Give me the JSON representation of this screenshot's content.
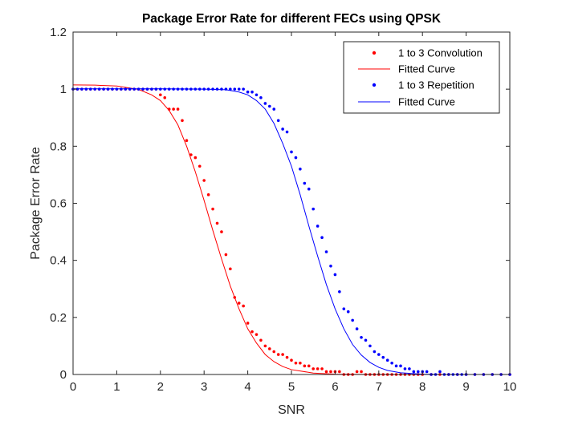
{
  "chart_data": {
    "type": "scatter",
    "title": "Package Error Rate for different FECs using QPSK",
    "xlabel": "SNR",
    "ylabel": "Package Error Rate",
    "xlim": [
      0,
      10
    ],
    "ylim": [
      0,
      1.2
    ],
    "xticks": [
      0,
      1,
      2,
      3,
      4,
      5,
      6,
      7,
      8,
      9,
      10
    ],
    "yticks": [
      0,
      0.2,
      0.4,
      0.6,
      0.8,
      1,
      1.2
    ],
    "xtick_labels": [
      "0",
      "1",
      "2",
      "3",
      "4",
      "5",
      "6",
      "7",
      "8",
      "9",
      "10"
    ],
    "ytick_labels": [
      "0",
      "0.2",
      "0.4",
      "0.6",
      "0.8",
      "1",
      "1.2"
    ],
    "grid": false,
    "legend_position": "top-right",
    "series": [
      {
        "name": "1 to 3 Convolution",
        "kind": "points",
        "color": "#ff0000",
        "points": [
          [
            0.0,
            1.0
          ],
          [
            0.1,
            1.0
          ],
          [
            0.2,
            1.0
          ],
          [
            0.3,
            1.0
          ],
          [
            0.4,
            1.0
          ],
          [
            0.5,
            1.0
          ],
          [
            0.6,
            1.0
          ],
          [
            0.7,
            1.0
          ],
          [
            0.8,
            1.0
          ],
          [
            0.9,
            1.0
          ],
          [
            1.0,
            1.0
          ],
          [
            1.1,
            1.0
          ],
          [
            1.2,
            1.0
          ],
          [
            1.3,
            1.0
          ],
          [
            1.4,
            1.0
          ],
          [
            1.5,
            1.0
          ],
          [
            1.6,
            1.0
          ],
          [
            1.7,
            1.0
          ],
          [
            1.8,
            1.0
          ],
          [
            1.9,
            1.0
          ],
          [
            2.0,
            0.98
          ],
          [
            2.1,
            0.97
          ],
          [
            2.2,
            0.93
          ],
          [
            2.3,
            0.93
          ],
          [
            2.4,
            0.93
          ],
          [
            2.5,
            0.89
          ],
          [
            2.6,
            0.82
          ],
          [
            2.7,
            0.77
          ],
          [
            2.8,
            0.76
          ],
          [
            2.9,
            0.73
          ],
          [
            3.0,
            0.68
          ],
          [
            3.1,
            0.63
          ],
          [
            3.2,
            0.58
          ],
          [
            3.3,
            0.53
          ],
          [
            3.4,
            0.5
          ],
          [
            3.5,
            0.42
          ],
          [
            3.6,
            0.37
          ],
          [
            3.7,
            0.27
          ],
          [
            3.8,
            0.25
          ],
          [
            3.9,
            0.24
          ],
          [
            4.0,
            0.18
          ],
          [
            4.1,
            0.15
          ],
          [
            4.2,
            0.14
          ],
          [
            4.3,
            0.12
          ],
          [
            4.4,
            0.1
          ],
          [
            4.5,
            0.09
          ],
          [
            4.6,
            0.08
          ],
          [
            4.7,
            0.07
          ],
          [
            4.8,
            0.07
          ],
          [
            4.9,
            0.06
          ],
          [
            5.0,
            0.05
          ],
          [
            5.1,
            0.04
          ],
          [
            5.2,
            0.04
          ],
          [
            5.3,
            0.03
          ],
          [
            5.4,
            0.03
          ],
          [
            5.5,
            0.02
          ],
          [
            5.6,
            0.02
          ],
          [
            5.7,
            0.02
          ],
          [
            5.8,
            0.01
          ],
          [
            5.9,
            0.01
          ],
          [
            6.0,
            0.01
          ],
          [
            6.1,
            0.01
          ],
          [
            6.2,
            0.0
          ],
          [
            6.3,
            0.0
          ],
          [
            6.4,
            0.0
          ],
          [
            6.5,
            0.01
          ],
          [
            6.6,
            0.01
          ],
          [
            6.7,
            0.0
          ],
          [
            6.8,
            0.0
          ],
          [
            6.9,
            0.0
          ],
          [
            7.0,
            0.0
          ],
          [
            7.1,
            0.0
          ],
          [
            7.2,
            0.0
          ],
          [
            7.3,
            0.0
          ],
          [
            7.4,
            0.0
          ],
          [
            7.5,
            0.0
          ],
          [
            7.6,
            0.0
          ],
          [
            7.7,
            0.0
          ],
          [
            7.8,
            0.0
          ],
          [
            7.9,
            0.0
          ],
          [
            8.0,
            0.0
          ],
          [
            8.2,
            0.0
          ],
          [
            8.4,
            0.0
          ],
          [
            8.6,
            0.0
          ],
          [
            8.8,
            0.0
          ],
          [
            9.0,
            0.0
          ],
          [
            9.2,
            0.0
          ],
          [
            9.4,
            0.0
          ],
          [
            9.6,
            0.0
          ],
          [
            9.8,
            0.0
          ],
          [
            10.0,
            0.0
          ]
        ]
      },
      {
        "name": "Fitted Curve",
        "kind": "line",
        "color": "#ff0000",
        "points": [
          [
            0.0,
            1.015
          ],
          [
            0.5,
            1.014
          ],
          [
            1.0,
            1.011
          ],
          [
            1.5,
            0.999
          ],
          [
            1.8,
            0.98
          ],
          [
            2.0,
            0.96
          ],
          [
            2.2,
            0.925
          ],
          [
            2.4,
            0.875
          ],
          [
            2.6,
            0.8
          ],
          [
            2.8,
            0.71
          ],
          [
            3.0,
            0.61
          ],
          [
            3.2,
            0.505
          ],
          [
            3.4,
            0.405
          ],
          [
            3.6,
            0.31
          ],
          [
            3.8,
            0.23
          ],
          [
            4.0,
            0.16
          ],
          [
            4.2,
            0.11
          ],
          [
            4.4,
            0.07
          ],
          [
            4.6,
            0.045
          ],
          [
            4.8,
            0.028
          ],
          [
            5.0,
            0.017
          ],
          [
            5.5,
            0.005
          ],
          [
            6.0,
            0.001
          ],
          [
            7.0,
            0.0
          ],
          [
            8.0,
            0.0
          ],
          [
            9.0,
            0.0
          ],
          [
            10.0,
            0.0
          ]
        ]
      },
      {
        "name": "1 to 3 Repetition",
        "kind": "points",
        "color": "#0000ff",
        "points": [
          [
            0.0,
            1.0
          ],
          [
            0.1,
            1.0
          ],
          [
            0.2,
            1.0
          ],
          [
            0.3,
            1.0
          ],
          [
            0.4,
            1.0
          ],
          [
            0.5,
            1.0
          ],
          [
            0.6,
            1.0
          ],
          [
            0.7,
            1.0
          ],
          [
            0.8,
            1.0
          ],
          [
            0.9,
            1.0
          ],
          [
            1.0,
            1.0
          ],
          [
            1.1,
            1.0
          ],
          [
            1.2,
            1.0
          ],
          [
            1.3,
            1.0
          ],
          [
            1.4,
            1.0
          ],
          [
            1.5,
            1.0
          ],
          [
            1.6,
            1.0
          ],
          [
            1.7,
            1.0
          ],
          [
            1.8,
            1.0
          ],
          [
            1.9,
            1.0
          ],
          [
            2.0,
            1.0
          ],
          [
            2.1,
            1.0
          ],
          [
            2.2,
            1.0
          ],
          [
            2.3,
            1.0
          ],
          [
            2.4,
            1.0
          ],
          [
            2.5,
            1.0
          ],
          [
            2.6,
            1.0
          ],
          [
            2.7,
            1.0
          ],
          [
            2.8,
            1.0
          ],
          [
            2.9,
            1.0
          ],
          [
            3.0,
            1.0
          ],
          [
            3.1,
            1.0
          ],
          [
            3.2,
            1.0
          ],
          [
            3.3,
            1.0
          ],
          [
            3.4,
            1.0
          ],
          [
            3.5,
            1.0
          ],
          [
            3.6,
            1.0
          ],
          [
            3.7,
            1.0
          ],
          [
            3.8,
            1.0
          ],
          [
            3.9,
            1.0
          ],
          [
            4.0,
            0.99
          ],
          [
            4.1,
            0.99
          ],
          [
            4.2,
            0.98
          ],
          [
            4.3,
            0.97
          ],
          [
            4.4,
            0.95
          ],
          [
            4.5,
            0.94
          ],
          [
            4.6,
            0.93
          ],
          [
            4.7,
            0.89
          ],
          [
            4.8,
            0.86
          ],
          [
            4.9,
            0.85
          ],
          [
            5.0,
            0.78
          ],
          [
            5.1,
            0.76
          ],
          [
            5.2,
            0.72
          ],
          [
            5.3,
            0.67
          ],
          [
            5.4,
            0.65
          ],
          [
            5.5,
            0.58
          ],
          [
            5.6,
            0.52
          ],
          [
            5.7,
            0.48
          ],
          [
            5.8,
            0.43
          ],
          [
            5.9,
            0.38
          ],
          [
            6.0,
            0.35
          ],
          [
            6.1,
            0.29
          ],
          [
            6.2,
            0.23
          ],
          [
            6.3,
            0.22
          ],
          [
            6.4,
            0.19
          ],
          [
            6.5,
            0.16
          ],
          [
            6.6,
            0.13
          ],
          [
            6.7,
            0.12
          ],
          [
            6.8,
            0.1
          ],
          [
            6.9,
            0.08
          ],
          [
            7.0,
            0.07
          ],
          [
            7.1,
            0.06
          ],
          [
            7.2,
            0.05
          ],
          [
            7.3,
            0.04
          ],
          [
            7.4,
            0.03
          ],
          [
            7.5,
            0.03
          ],
          [
            7.6,
            0.02
          ],
          [
            7.7,
            0.02
          ],
          [
            7.8,
            0.01
          ],
          [
            7.9,
            0.01
          ],
          [
            8.0,
            0.01
          ],
          [
            8.1,
            0.01
          ],
          [
            8.2,
            0.0
          ],
          [
            8.3,
            0.0
          ],
          [
            8.4,
            0.01
          ],
          [
            8.5,
            0.0
          ],
          [
            8.6,
            0.0
          ],
          [
            8.7,
            0.0
          ],
          [
            8.8,
            0.0
          ],
          [
            8.9,
            0.0
          ],
          [
            9.0,
            0.0
          ],
          [
            9.2,
            0.0
          ],
          [
            9.4,
            0.0
          ],
          [
            9.6,
            0.0
          ],
          [
            9.8,
            0.0
          ],
          [
            10.0,
            0.0
          ]
        ]
      },
      {
        "name": "Fitted Curve",
        "kind": "line",
        "color": "#0000ff",
        "points": [
          [
            0.0,
            1.001
          ],
          [
            1.0,
            1.001
          ],
          [
            2.0,
            1.001
          ],
          [
            3.0,
            1.0
          ],
          [
            3.5,
            0.998
          ],
          [
            3.8,
            0.99
          ],
          [
            4.0,
            0.98
          ],
          [
            4.2,
            0.96
          ],
          [
            4.4,
            0.93
          ],
          [
            4.6,
            0.88
          ],
          [
            4.8,
            0.81
          ],
          [
            5.0,
            0.73
          ],
          [
            5.2,
            0.63
          ],
          [
            5.4,
            0.52
          ],
          [
            5.6,
            0.415
          ],
          [
            5.8,
            0.315
          ],
          [
            6.0,
            0.23
          ],
          [
            6.2,
            0.16
          ],
          [
            6.4,
            0.105
          ],
          [
            6.6,
            0.068
          ],
          [
            6.8,
            0.042
          ],
          [
            7.0,
            0.025
          ],
          [
            7.2,
            0.014
          ],
          [
            7.5,
            0.006
          ],
          [
            8.0,
            0.001
          ],
          [
            8.5,
            0.0
          ],
          [
            9.0,
            0.0
          ],
          [
            10.0,
            0.0
          ]
        ]
      }
    ]
  }
}
